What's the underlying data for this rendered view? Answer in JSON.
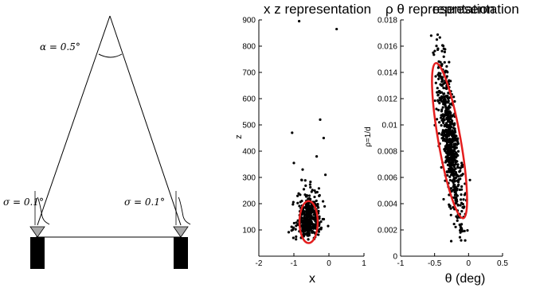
{
  "diagram": {
    "alpha_label": "α = 0.5°",
    "sigma_left_label": "σ = 0.1°",
    "sigma_right_label": "σ = 0.1°"
  },
  "chart_data": [
    {
      "type": "scatter",
      "title": "x z representation",
      "xlabel": "x",
      "ylabel": "z",
      "xlim": [
        -2,
        1
      ],
      "ylim": [
        0,
        900
      ],
      "xticks": [
        "-2",
        "-1",
        "0",
        "1"
      ],
      "yticks": [
        "100",
        "200",
        "300",
        "400",
        "500",
        "600",
        "700",
        "800",
        "900"
      ],
      "outliers": [
        [
          -0.85,
          895
        ],
        [
          0.22,
          865
        ],
        [
          -0.25,
          520
        ],
        [
          -0.15,
          450
        ],
        [
          -1.05,
          470
        ],
        [
          -0.35,
          380
        ],
        [
          -1.0,
          355
        ],
        [
          -0.1,
          310
        ],
        [
          -0.75,
          330
        ]
      ],
      "cluster": {
        "x_mean": -0.58,
        "x_sd": 0.17,
        "z_median": 125
      },
      "ellipse": {
        "cx": -0.58,
        "cz": 130,
        "rx": 0.26,
        "rz": 80,
        "color": "#e41e1e"
      },
      "grid": false
    },
    {
      "type": "scatter",
      "title": "ρ θ  representation",
      "xlabel": "θ  (deg)",
      "ylabel": "ρ=1/d",
      "xlim": [
        -1,
        0.5
      ],
      "ylim": [
        0,
        0.018
      ],
      "xticks": [
        "-1",
        "-0.5",
        "0",
        "0.5"
      ],
      "yticks": [
        "0",
        "0.002",
        "0.004",
        "0.006",
        "0.008",
        "0.01",
        "0.012",
        "0.014",
        "0.016",
        "0.018"
      ],
      "cluster": {
        "theta_range": [
          -0.55,
          0.0
        ],
        "rho_range": [
          0.001,
          0.0168
        ]
      },
      "ellipse": {
        "color": "#e41e1e"
      },
      "grid": false
    }
  ]
}
